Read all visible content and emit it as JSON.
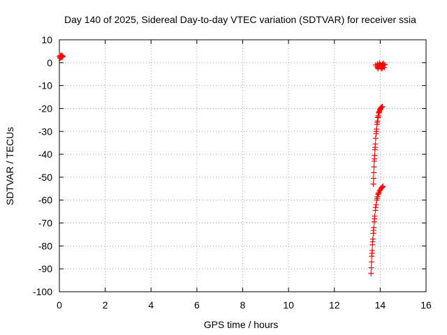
{
  "chart_data": {
    "type": "scatter",
    "title": "Day 140 of 2025, Sidereal Day-to-day VTEC variation (SDTVAR) for receiver ssia",
    "xlabel": "GPS time / hours",
    "ylabel": "SDTVAR / TECUs",
    "xlim": [
      0,
      16
    ],
    "ylim": [
      -100,
      10
    ],
    "xticks": [
      "0",
      "2",
      "4",
      "6",
      "8",
      "10",
      "12",
      "14",
      "16"
    ],
    "yticks": [
      "10",
      "0",
      "-10",
      "-20",
      "-30",
      "-40",
      "-50",
      "-60",
      "-70",
      "-80",
      "-90",
      "-100"
    ],
    "grid": true,
    "marker": "plus",
    "colors": {
      "points": "#ff0000"
    },
    "series": [
      {
        "points": [
          [
            0.0,
            2.8
          ],
          [
            0.03,
            2.2
          ],
          [
            0.05,
            3.1
          ],
          [
            0.07,
            2.5
          ],
          [
            0.09,
            2.9
          ],
          [
            0.11,
            2.4
          ],
          [
            0.13,
            3.0
          ],
          [
            0.15,
            2.6
          ],
          [
            0.04,
            2.0
          ],
          [
            0.1,
            3.2
          ],
          [
            13.8,
            -1.0
          ],
          [
            13.85,
            -1.8
          ],
          [
            13.88,
            -0.6
          ],
          [
            13.92,
            -2.2
          ],
          [
            13.95,
            -1.2
          ],
          [
            13.98,
            -0.4
          ],
          [
            14.0,
            -1.9
          ],
          [
            14.02,
            -0.9
          ],
          [
            14.05,
            -2.4
          ],
          [
            14.07,
            -1.5
          ],
          [
            14.1,
            -0.7
          ],
          [
            14.12,
            -1.9
          ],
          [
            14.15,
            -1.1
          ],
          [
            14.18,
            -2.1
          ],
          [
            14.2,
            -0.8
          ],
          [
            13.9,
            -2.6
          ],
          [
            14.08,
            -2.6
          ],
          [
            13.97,
            -0.2
          ],
          [
            14.13,
            -0.3
          ],
          [
            14.03,
            -1.4
          ],
          [
            13.7,
            -53.0
          ],
          [
            13.71,
            -50.5
          ],
          [
            13.72,
            -48.0
          ],
          [
            13.73,
            -45.5
          ],
          [
            13.74,
            -43.0
          ],
          [
            13.76,
            -40.5
          ],
          [
            13.77,
            -38.0
          ],
          [
            13.79,
            -35.5
          ],
          [
            13.8,
            -33.0
          ],
          [
            13.82,
            -31.0
          ],
          [
            13.84,
            -29.0
          ],
          [
            13.86,
            -27.0
          ],
          [
            13.88,
            -25.5
          ],
          [
            13.9,
            -24.0
          ],
          [
            13.92,
            -23.0
          ],
          [
            13.94,
            -22.0
          ],
          [
            13.96,
            -21.3
          ],
          [
            13.98,
            -20.8
          ],
          [
            14.0,
            -20.2
          ],
          [
            14.02,
            -19.8
          ],
          [
            14.05,
            -19.5
          ],
          [
            14.08,
            -19.3
          ],
          [
            14.1,
            -19.2
          ],
          [
            13.75,
            -42.0
          ],
          [
            13.78,
            -37.0
          ],
          [
            13.83,
            -30.0
          ],
          [
            13.87,
            -26.2
          ],
          [
            13.91,
            -23.6
          ],
          [
            13.95,
            -21.7
          ],
          [
            13.99,
            -20.5
          ],
          [
            13.6,
            -92.0
          ],
          [
            13.61,
            -89.5
          ],
          [
            13.62,
            -87.0
          ],
          [
            13.63,
            -84.5
          ],
          [
            13.65,
            -82.0
          ],
          [
            13.66,
            -79.5
          ],
          [
            13.68,
            -77.0
          ],
          [
            13.7,
            -74.5
          ],
          [
            13.72,
            -72.0
          ],
          [
            13.74,
            -69.5
          ],
          [
            13.76,
            -67.0
          ],
          [
            13.79,
            -64.5
          ],
          [
            13.82,
            -62.0
          ],
          [
            13.85,
            -60.0
          ],
          [
            13.88,
            -58.5
          ],
          [
            13.91,
            -57.5
          ],
          [
            13.94,
            -56.8
          ],
          [
            13.97,
            -56.0
          ],
          [
            14.0,
            -55.5
          ],
          [
            14.03,
            -55.0
          ],
          [
            14.06,
            -54.6
          ],
          [
            14.09,
            -54.3
          ],
          [
            14.12,
            -54.0
          ],
          [
            13.64,
            -83.2
          ],
          [
            13.67,
            -78.2
          ],
          [
            13.71,
            -73.2
          ],
          [
            13.75,
            -68.2
          ],
          [
            13.8,
            -63.2
          ],
          [
            13.86,
            -59.2
          ],
          [
            13.92,
            -57.0
          ]
        ]
      }
    ]
  }
}
